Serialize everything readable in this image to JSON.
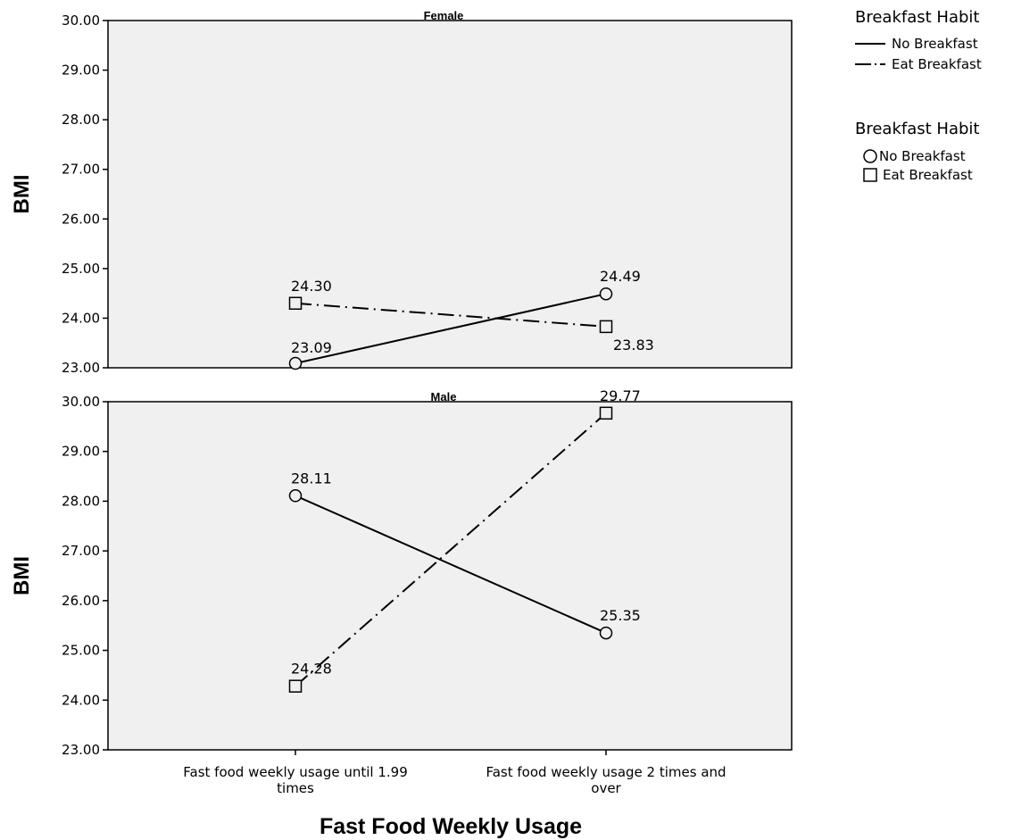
{
  "chart_data": [
    {
      "type": "line",
      "title": "Female",
      "ylabel": "BMI",
      "xlabel": "",
      "ylim": [
        23.0,
        30.0
      ],
      "yticks": [
        "23.00",
        "24.00",
        "25.00",
        "26.00",
        "27.00",
        "28.00",
        "29.00",
        "30.00"
      ],
      "categories": [
        "Fast food weekly usage until 1.99 times",
        "Fast food weekly usage 2 times and over"
      ],
      "series": [
        {
          "name": "No Breakfast",
          "values": [
            23.09,
            24.49
          ],
          "labels": [
            "23.09",
            "24.49"
          ],
          "marker": "circle",
          "line": "solid"
        },
        {
          "name": "Eat Breakfast",
          "values": [
            24.3,
            23.83
          ],
          "labels": [
            "24.30",
            "23.83"
          ],
          "marker": "square",
          "line": "dash-dot"
        }
      ]
    },
    {
      "type": "line",
      "title": "Male",
      "ylabel": "BMI",
      "xlabel": "Fast Food Weekly Usage",
      "ylim": [
        23.0,
        30.0
      ],
      "yticks": [
        "23.00",
        "24.00",
        "25.00",
        "26.00",
        "27.00",
        "28.00",
        "29.00",
        "30.00"
      ],
      "categories": [
        "Fast food weekly usage until 1.99 times",
        "Fast food weekly usage 2 times and over"
      ],
      "category_lines": [
        [
          "Fast food weekly usage until 1.99",
          "times"
        ],
        [
          "Fast food weekly usage 2 times and",
          "over"
        ]
      ],
      "series": [
        {
          "name": "No Breakfast",
          "values": [
            28.11,
            25.35
          ],
          "labels": [
            "28.11",
            "25.35"
          ],
          "marker": "circle",
          "line": "solid"
        },
        {
          "name": "Eat Breakfast",
          "values": [
            24.28,
            29.77
          ],
          "labels": [
            "24.28",
            "29.77"
          ],
          "marker": "square",
          "line": "dash-dot"
        }
      ]
    }
  ],
  "legend": {
    "line_legend": {
      "title": "Breakfast Habit",
      "items": [
        "No Breakfast",
        "Eat Breakfast"
      ]
    },
    "marker_legend": {
      "title": "Breakfast Habit",
      "items": [
        "No Breakfast",
        "Eat Breakfast"
      ]
    }
  },
  "colors": {
    "plot_background": "#f0f0f0",
    "line": "#000000"
  }
}
